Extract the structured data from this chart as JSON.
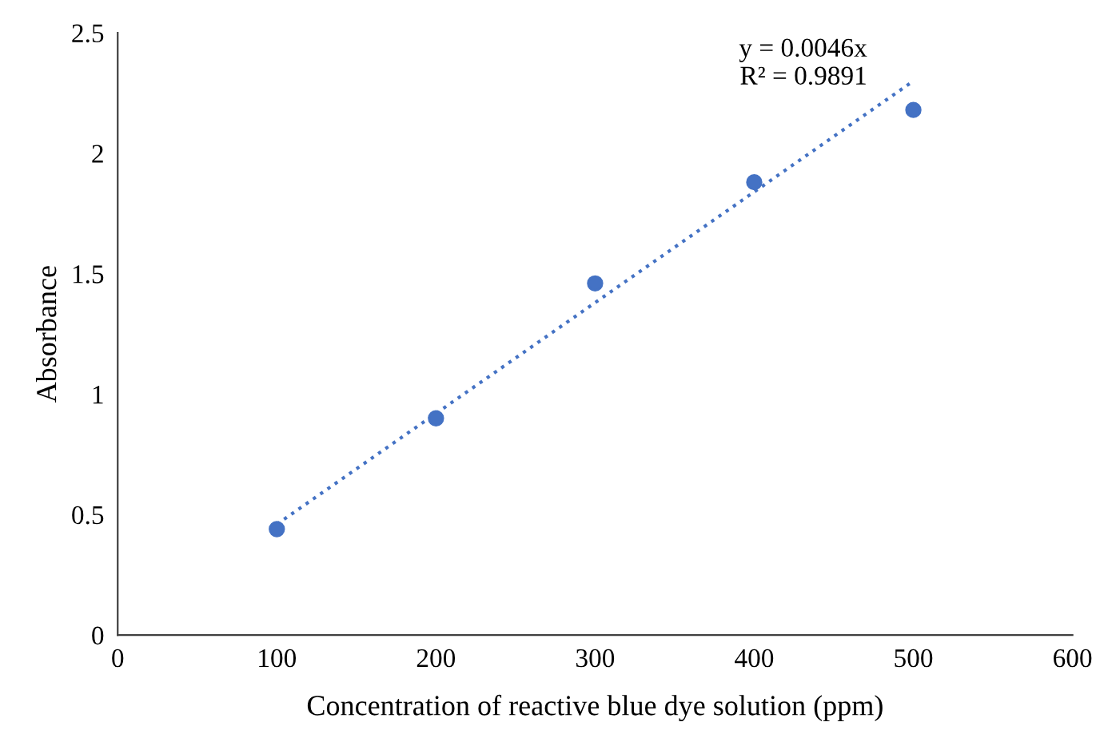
{
  "chart_data": {
    "type": "scatter",
    "xlabel": "Concentration of reactive blue dye solution (ppm)",
    "ylabel": "Absorbance",
    "x": [
      100,
      200,
      300,
      400,
      500
    ],
    "series": [
      {
        "type": "scatter",
        "color": "#4472c4",
        "values": [
          0.44,
          0.9,
          1.46,
          1.88,
          2.18
        ],
        "marker": "circle"
      },
      {
        "type": "line",
        "color": "#4472c4",
        "x": [
          100,
          500
        ],
        "values": [
          0.46,
          2.3
        ],
        "line_style": "dotted",
        "marker": "none"
      }
    ],
    "annotations": [
      "y = 0.0046x\nR² = 0.9891"
    ],
    "xlim": [
      0,
      600
    ],
    "xticks": [
      0,
      100,
      200,
      300,
      400,
      500,
      600
    ],
    "ylim": [
      0,
      2.5
    ],
    "yticks": [
      0,
      0.5,
      1,
      1.5,
      2,
      2.5
    ],
    "grid": false,
    "legend": false
  }
}
